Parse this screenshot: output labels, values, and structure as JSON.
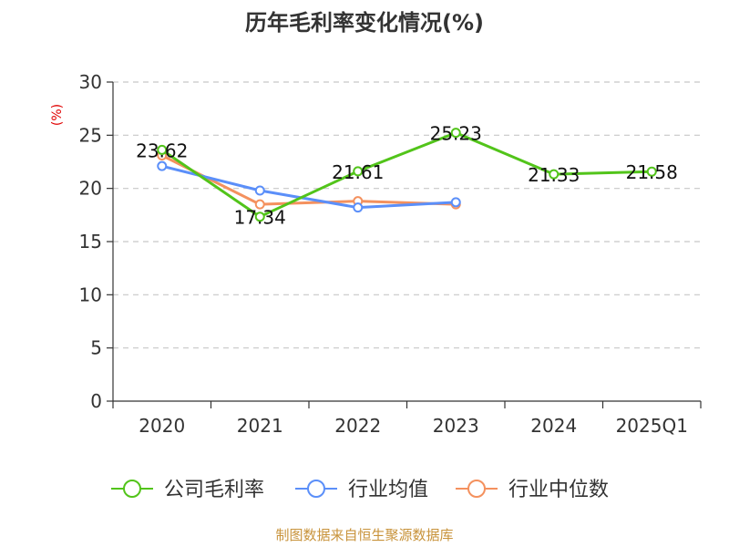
{
  "chart_data": {
    "type": "line",
    "title": "历年毛利率变化情况(%)",
    "ylabel": "(%)",
    "xlabel": "",
    "categories": [
      "2020",
      "2021",
      "2022",
      "2023",
      "2024",
      "2025Q1"
    ],
    "ylim": [
      0,
      30
    ],
    "yticks": [
      0,
      5,
      10,
      15,
      20,
      25,
      30
    ],
    "grid": true,
    "legend_position": "bottom",
    "series": [
      {
        "name": "公司毛利率",
        "color": "#52c41a",
        "values": [
          23.62,
          17.34,
          21.61,
          25.23,
          21.33,
          21.58
        ],
        "labels": [
          "23.62",
          "17.34",
          "21.61",
          "25.23",
          "21.33",
          "21.58"
        ]
      },
      {
        "name": "行业均值",
        "color": "#5b8ff9",
        "values": [
          22.1,
          19.8,
          18.2,
          18.7,
          null,
          null
        ]
      },
      {
        "name": "行业中位数",
        "color": "#f4915e",
        "values": [
          23.1,
          18.5,
          18.8,
          18.5,
          null,
          null
        ]
      }
    ],
    "source": "制图数据来自恒生聚源数据库"
  }
}
